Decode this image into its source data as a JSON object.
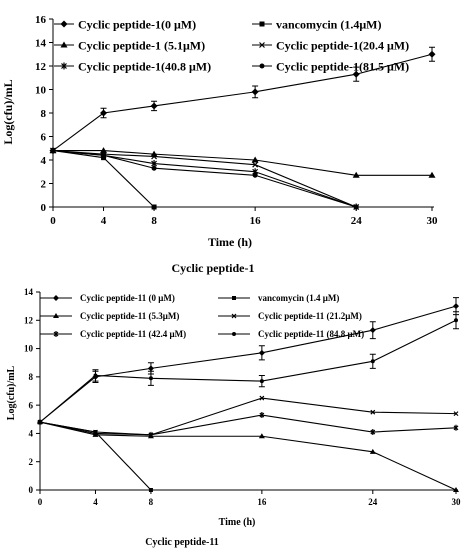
{
  "chart_data": [
    {
      "type": "line",
      "title": "",
      "caption": "Cyclic  peptide-1",
      "xlabel": "Time (h)",
      "ylabel": "Log(cfu)/mL",
      "x": [
        0,
        4,
        8,
        16,
        24,
        30
      ],
      "x_ticks": [
        "0",
        "4",
        "8",
        "16",
        "24",
        "30"
      ],
      "xlim": [
        0,
        30
      ],
      "ylim": [
        0,
        16
      ],
      "y_ticks": [
        "0",
        "2",
        "4",
        "6",
        "8",
        "10",
        "12",
        "14",
        "16"
      ],
      "grid": false,
      "legend_position": "top",
      "series": [
        {
          "name": "Cyclic peptide-1(0 μM)",
          "marker": "diamond",
          "values": [
            4.8,
            8.0,
            8.6,
            9.8,
            11.3,
            13.0
          ],
          "errors": [
            0,
            0.4,
            0.4,
            0.5,
            0.6,
            0.6
          ]
        },
        {
          "name": "vancomycin (1.4μM)",
          "marker": "square",
          "values": [
            4.8,
            4.2,
            0,
            null,
            null,
            null
          ]
        },
        {
          "name": "Cyclic peptide-1  (5.1μM)",
          "marker": "triangle",
          "values": [
            4.8,
            4.8,
            4.5,
            4.0,
            2.7,
            2.7
          ]
        },
        {
          "name": "Cyclic peptide-1(20.4 μM)",
          "marker": "x",
          "values": [
            4.8,
            4.5,
            4.3,
            3.6,
            0,
            null
          ]
        },
        {
          "name": "Cyclic peptide-1(40.8 μM)",
          "marker": "star",
          "values": [
            4.8,
            4.4,
            3.7,
            3.0,
            0,
            null
          ]
        },
        {
          "name": "Cyclic peptide-1(81.5 μM)",
          "marker": "circle",
          "values": [
            4.8,
            4.4,
            3.3,
            2.7,
            0,
            null
          ]
        }
      ]
    },
    {
      "type": "line",
      "title": "",
      "caption": "Cyclic peptide-11",
      "xlabel": "Time (h)",
      "ylabel": "Log(cfu)/mL",
      "x": [
        0,
        4,
        8,
        16,
        24,
        30
      ],
      "x_ticks": [
        "0",
        "4",
        "8",
        "16",
        "24",
        "30"
      ],
      "xlim": [
        0,
        30
      ],
      "ylim": [
        0,
        14
      ],
      "y_ticks": [
        "0",
        "2",
        "4",
        "6",
        "8",
        "10",
        "12",
        "14"
      ],
      "grid": false,
      "legend_position": "top",
      "series": [
        {
          "name": "Cyclic peptide-11 (0 μM)",
          "marker": "diamond",
          "values": [
            4.8,
            8.0,
            8.6,
            9.7,
            11.3,
            13.0
          ],
          "errors": [
            0,
            0.4,
            0.4,
            0.5,
            0.6,
            0.6
          ]
        },
        {
          "name": "vancomycin (1.4 μM)",
          "marker": "square",
          "values": [
            4.8,
            4.1,
            0,
            null,
            null,
            null
          ]
        },
        {
          "name": "Cyclic peptide-11 (5.3μM)",
          "marker": "triangle",
          "values": [
            4.8,
            3.9,
            3.8,
            3.8,
            2.7,
            0
          ]
        },
        {
          "name": "Cyclic peptide-11 (21.2μM)",
          "marker": "x",
          "values": [
            4.8,
            4.1,
            3.9,
            6.5,
            5.5,
            5.4
          ]
        },
        {
          "name": "Cyclic peptide-11 (42.4 μM)",
          "marker": "star",
          "values": [
            4.8,
            4.0,
            3.9,
            5.3,
            4.1,
            4.4
          ]
        },
        {
          "name": "Cyclic peptide-11 (84.8 μM)",
          "marker": "circle",
          "values": [
            4.8,
            8.1,
            7.9,
            7.7,
            9.1,
            12.0
          ],
          "errors": [
            0,
            0.4,
            0.5,
            0.4,
            0.5,
            0.6
          ]
        }
      ]
    }
  ]
}
